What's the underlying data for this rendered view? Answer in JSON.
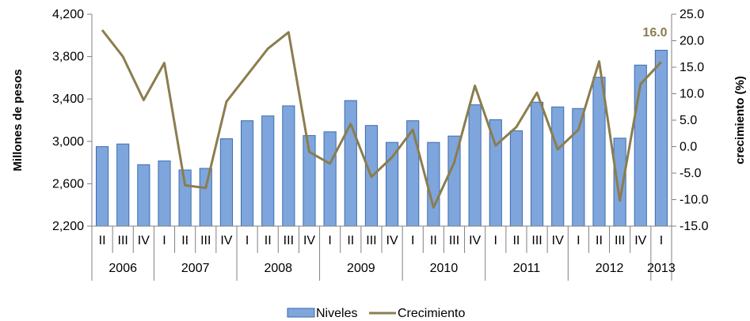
{
  "chart_data": {
    "type": "bar",
    "title": "",
    "categories": [
      "II",
      "III",
      "IV",
      "I",
      "II",
      "III",
      "IV",
      "I",
      "II",
      "III",
      "IV",
      "I",
      "II",
      "III",
      "IV",
      "I",
      "II",
      "III",
      "IV",
      "I",
      "II",
      "III",
      "IV",
      "I",
      "II",
      "III",
      "IV",
      "I"
    ],
    "years": [
      {
        "label": "2006",
        "count": 3
      },
      {
        "label": "2007",
        "count": 4
      },
      {
        "label": "2008",
        "count": 4
      },
      {
        "label": "2009",
        "count": 4
      },
      {
        "label": "2010",
        "count": 4
      },
      {
        "label": "2011",
        "count": 4
      },
      {
        "label": "2012",
        "count": 4
      },
      {
        "label": "2013",
        "count": 1
      }
    ],
    "series": [
      {
        "name": "Niveles",
        "type": "bar",
        "axis": "left",
        "color": "#7ea6dc",
        "values": [
          2950,
          2975,
          2780,
          2815,
          2730,
          2745,
          3025,
          3195,
          3240,
          3335,
          3055,
          3090,
          3385,
          3150,
          2990,
          3195,
          2990,
          3050,
          3345,
          3205,
          3100,
          3370,
          3325,
          3310,
          3605,
          3030,
          3720,
          3860
        ]
      },
      {
        "name": "Crecimiento",
        "type": "line",
        "axis": "right",
        "color": "#8b7d4e",
        "values": [
          22.0,
          17.0,
          8.8,
          15.8,
          -7.3,
          -7.8,
          8.5,
          13.5,
          18.5,
          21.6,
          -1.0,
          -3.2,
          4.3,
          -5.7,
          -2.0,
          3.2,
          -11.5,
          -3.0,
          11.5,
          0.2,
          3.7,
          10.2,
          -0.5,
          3.2,
          16.1,
          -10.2,
          11.8,
          16.0
        ]
      }
    ],
    "ylabel": "Millones de pesos",
    "y2label": "crecimiento (%)",
    "ylim": [
      2200,
      4200
    ],
    "yticks": [
      "2,200",
      "2,600",
      "3,000",
      "3,400",
      "3,800",
      "4,200"
    ],
    "y2lim": [
      -15,
      25
    ],
    "y2ticks": [
      "-15.0",
      "-10.0",
      "-5.0",
      "0.0",
      "5.0",
      "10.0",
      "15.0",
      "20.0",
      "25.0"
    ],
    "annotation": {
      "text": "16.0",
      "color": "#8b7d4e"
    },
    "legend_position": "bottom",
    "grid": false
  }
}
